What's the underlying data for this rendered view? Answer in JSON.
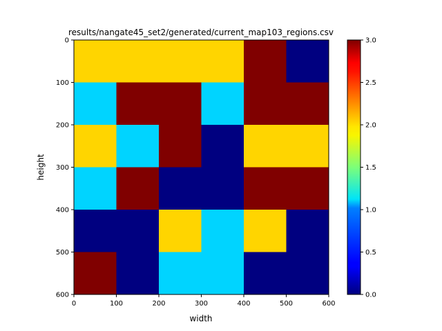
{
  "chart_data": {
    "type": "heatmap",
    "title": "results/nangate45_set2/generated/current_map103_regions.csv",
    "xlabel": "width",
    "ylabel": "height",
    "x_ticks": [
      "0",
      "100",
      "200",
      "300",
      "400",
      "500",
      "600"
    ],
    "y_ticks": [
      "0",
      "100",
      "200",
      "300",
      "400",
      "500",
      "600"
    ],
    "xlim": [
      0,
      600
    ],
    "ylim": [
      600,
      0
    ],
    "cell_size": 100,
    "grid": false,
    "colormap": "jet",
    "colorbar": {
      "range": [
        0.0,
        3.0
      ],
      "ticks": [
        "0.0",
        "0.5",
        "1.0",
        "1.5",
        "2.0",
        "2.5",
        "3.0"
      ]
    },
    "values": [
      [
        2,
        2,
        2,
        2,
        3,
        0
      ],
      [
        1,
        3,
        3,
        1,
        3,
        3
      ],
      [
        2,
        1,
        3,
        0,
        2,
        2
      ],
      [
        1,
        3,
        0,
        0,
        3,
        3
      ],
      [
        0,
        0,
        2,
        1,
        2,
        0
      ],
      [
        3,
        0,
        1,
        1,
        0,
        0
      ]
    ]
  }
}
